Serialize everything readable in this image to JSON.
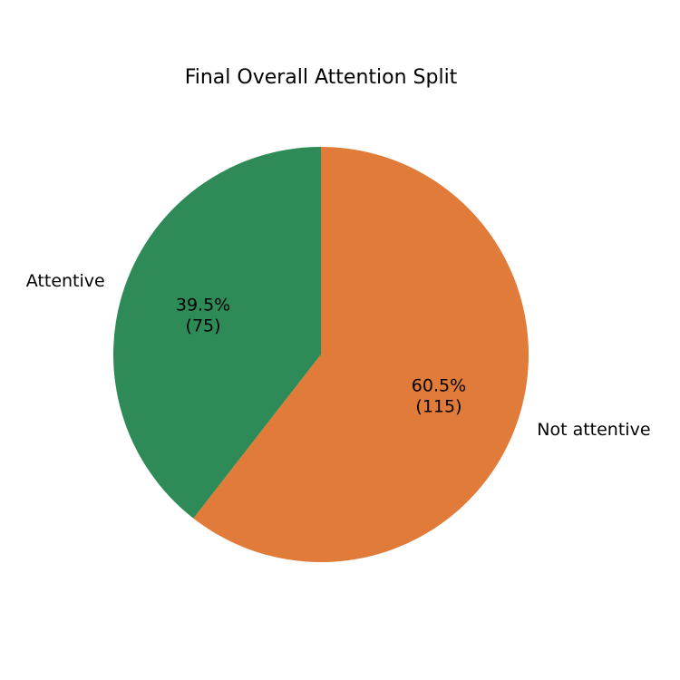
{
  "chart_data": {
    "type": "pie",
    "title": "Final Overall Attention Split",
    "slices": [
      {
        "label": "Attentive",
        "value": 75,
        "percent_text": "39.5%",
        "count_text": "(75)",
        "color": "#2e8b57"
      },
      {
        "label": "Not attentive",
        "value": 115,
        "percent_text": "60.5%",
        "count_text": "(115)",
        "color": "#e07b39"
      }
    ],
    "start_angle": "top",
    "direction": "counterclockwise",
    "legend": "none"
  }
}
